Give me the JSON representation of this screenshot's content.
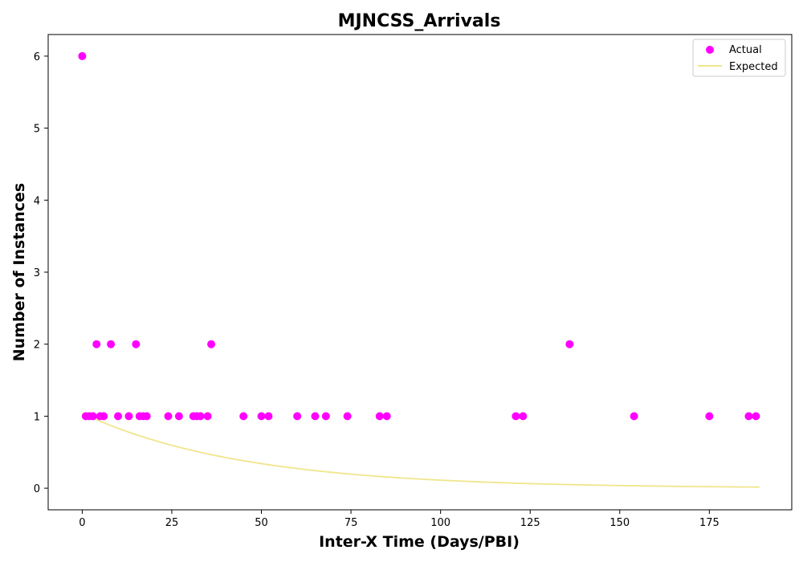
{
  "chart_data": {
    "type": "scatter",
    "title": "MJNCSS_Arrivals",
    "xlabel": "Inter-X Time (Days/PBI)",
    "ylabel": "Number of Instances",
    "xlim": [
      -9.5,
      198
    ],
    "ylim": [
      -0.3,
      6.3
    ],
    "xticks": [
      0,
      25,
      50,
      75,
      100,
      125,
      150,
      175
    ],
    "yticks": [
      0,
      1,
      2,
      3,
      4,
      5,
      6
    ],
    "grid": false,
    "legend_position": "top-right",
    "series": [
      {
        "name": "Actual",
        "kind": "scatter",
        "color": "#ff00ff",
        "points": [
          [
            0,
            6
          ],
          [
            1,
            1
          ],
          [
            2,
            1
          ],
          [
            3,
            1
          ],
          [
            4,
            2
          ],
          [
            5,
            1
          ],
          [
            6,
            1
          ],
          [
            8,
            2
          ],
          [
            10,
            1
          ],
          [
            13,
            1
          ],
          [
            15,
            2
          ],
          [
            16,
            1
          ],
          [
            17,
            1
          ],
          [
            18,
            1
          ],
          [
            24,
            1
          ],
          [
            27,
            1
          ],
          [
            31,
            1
          ],
          [
            32,
            1
          ],
          [
            33,
            1
          ],
          [
            35,
            1
          ],
          [
            36,
            2
          ],
          [
            45,
            1
          ],
          [
            50,
            1
          ],
          [
            52,
            1
          ],
          [
            60,
            1
          ],
          [
            65,
            1
          ],
          [
            68,
            1
          ],
          [
            74,
            1
          ],
          [
            83,
            1
          ],
          [
            85,
            1
          ],
          [
            121,
            1
          ],
          [
            123,
            1
          ],
          [
            136,
            2
          ],
          [
            154,
            1
          ],
          [
            175,
            1
          ],
          [
            186,
            1
          ],
          [
            188,
            1
          ]
        ]
      },
      {
        "name": "Expected",
        "kind": "line",
        "color": "#f0e68c",
        "x_start": 0,
        "x_end": 189,
        "amplitude": 1.04,
        "decay_rate": 0.0223
      }
    ]
  }
}
